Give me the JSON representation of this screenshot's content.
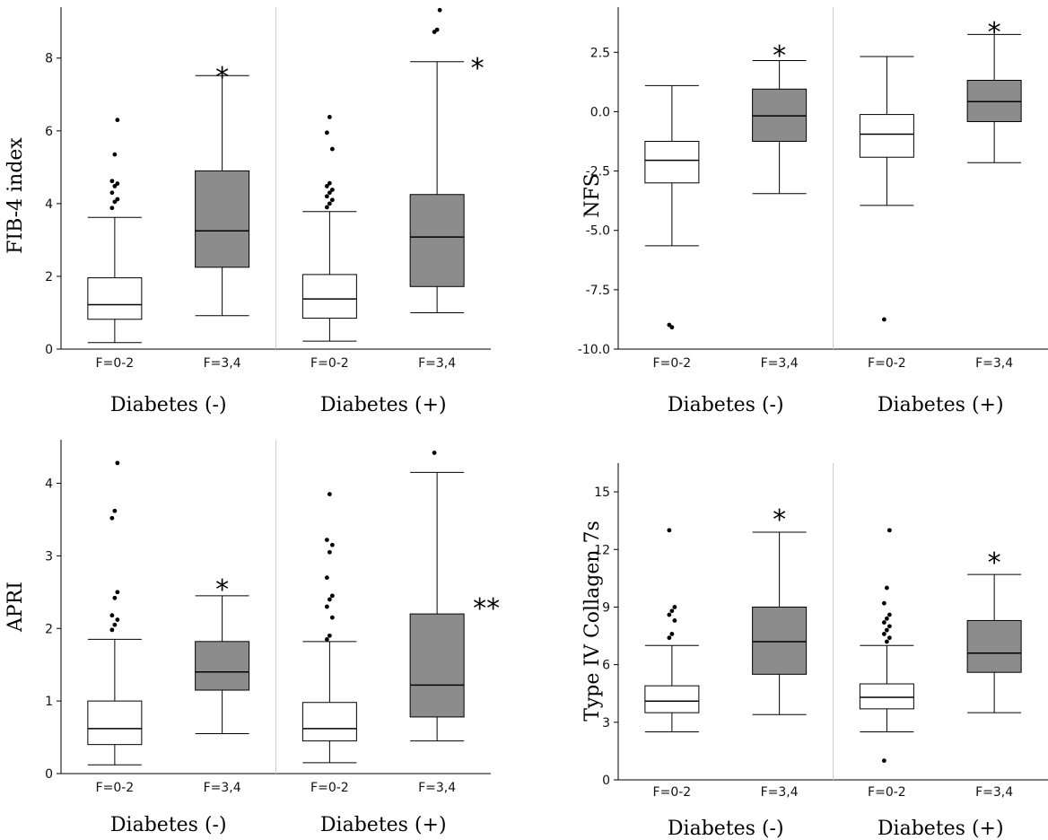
{
  "figure": {
    "background": "#ffffff",
    "box_fill_low": "#ffffff",
    "box_fill_high": "#8c8c8c",
    "stroke": "#000000",
    "divider": "#cccccc"
  },
  "chart_data": [
    {
      "type": "box",
      "ylabel": "FIB-4 index",
      "ylim": [
        0,
        9.4
      ],
      "yticks": [
        "0",
        "2",
        "4",
        "6",
        "8"
      ],
      "ytick_values": [
        0,
        2,
        4,
        6,
        8
      ],
      "groups": [
        "Diabetes (-)",
        "Diabetes (+)"
      ],
      "categories": [
        "F=0-2",
        "F=3,4",
        "F=0-2",
        "F=3,4"
      ],
      "boxes": [
        {
          "category": "F=0-2",
          "group": "Diabetes (-)",
          "fill": "white",
          "min": 0.18,
          "q1": 0.82,
          "median": 1.22,
          "q3": 1.96,
          "max": 3.62,
          "outliers": [
            3.88,
            4.05,
            4.12,
            4.3,
            4.48,
            4.55,
            4.62,
            5.35,
            6.3
          ],
          "star": ""
        },
        {
          "category": "F=3,4",
          "group": "Diabetes (-)",
          "fill": "gray",
          "min": 0.92,
          "q1": 2.25,
          "median": 3.25,
          "q3": 4.9,
          "max": 7.52,
          "outliers": [],
          "star": "*"
        },
        {
          "category": "F=0-2",
          "group": "Diabetes (+)",
          "fill": "white",
          "min": 0.22,
          "q1": 0.85,
          "median": 1.38,
          "q3": 2.05,
          "max": 3.78,
          "outliers": [
            3.9,
            4.0,
            4.1,
            4.2,
            4.3,
            4.38,
            4.48,
            4.56,
            5.5,
            5.95,
            6.38
          ],
          "star": ""
        },
        {
          "category": "F=3,4",
          "group": "Diabetes (+)",
          "fill": "gray",
          "min": 1.0,
          "q1": 1.72,
          "median": 3.08,
          "q3": 4.25,
          "max": 7.9,
          "outliers": [
            8.72,
            8.78,
            9.32
          ],
          "star": "*"
        }
      ]
    },
    {
      "type": "box",
      "ylabel": "NFS",
      "ylim": [
        -10.0,
        4.4
      ],
      "yticks": [
        "-10.0",
        "-7.5",
        "-5.0",
        "-2.5",
        "0.0",
        "2.5"
      ],
      "ytick_values": [
        -10.0,
        -7.5,
        -5.0,
        -2.5,
        0.0,
        2.5
      ],
      "groups": [
        "Diabetes (-)",
        "Diabetes (+)"
      ],
      "categories": [
        "F=0-2",
        "F=3,4",
        "F=0-2",
        "F=3,4"
      ],
      "boxes": [
        {
          "category": "F=0-2",
          "group": "Diabetes (-)",
          "fill": "white",
          "min": -5.65,
          "q1": -3.0,
          "median": -2.05,
          "q3": -1.25,
          "max": 1.1,
          "outliers": [
            -8.98,
            -9.08
          ],
          "star": ""
        },
        {
          "category": "F=3,4",
          "group": "Diabetes (-)",
          "fill": "gray",
          "min": -3.45,
          "q1": -1.25,
          "median": -0.18,
          "q3": 0.95,
          "max": 2.15,
          "outliers": [],
          "star": "*"
        },
        {
          "category": "F=0-2",
          "group": "Diabetes (+)",
          "fill": "white",
          "min": -3.95,
          "q1": -1.92,
          "median": -0.95,
          "q3": -0.12,
          "max": 2.32,
          "outliers": [
            -8.75
          ],
          "star": ""
        },
        {
          "category": "F=3,4",
          "group": "Diabetes (+)",
          "fill": "gray",
          "min": -2.15,
          "q1": -0.42,
          "median": 0.42,
          "q3": 1.32,
          "max": 3.25,
          "outliers": [],
          "star": "*"
        }
      ]
    },
    {
      "type": "box",
      "ylabel": "APRI",
      "ylim": [
        0,
        4.6
      ],
      "yticks": [
        "0",
        "1",
        "2",
        "3",
        "4"
      ],
      "ytick_values": [
        0,
        1,
        2,
        3,
        4
      ],
      "groups": [
        "Diabetes (-)",
        "Diabetes (+)"
      ],
      "categories": [
        "F=0-2",
        "F=3,4",
        "F=0-2",
        "F=3,4"
      ],
      "boxes": [
        {
          "category": "F=0-2",
          "group": "Diabetes (-)",
          "fill": "white",
          "min": 0.12,
          "q1": 0.4,
          "median": 0.62,
          "q3": 1.0,
          "max": 1.85,
          "outliers": [
            1.98,
            2.05,
            2.12,
            2.18,
            2.42,
            2.5,
            3.52,
            3.62,
            4.28
          ],
          "star": ""
        },
        {
          "category": "F=3,4",
          "group": "Diabetes (-)",
          "fill": "gray",
          "min": 0.55,
          "q1": 1.15,
          "median": 1.4,
          "q3": 1.82,
          "max": 2.45,
          "outliers": [],
          "star": "*"
        },
        {
          "category": "F=0-2",
          "group": "Diabetes (+)",
          "fill": "white",
          "min": 0.15,
          "q1": 0.45,
          "median": 0.62,
          "q3": 0.98,
          "max": 1.82,
          "outliers": [
            1.85,
            1.9,
            2.15,
            2.3,
            2.4,
            2.45,
            2.7,
            3.05,
            3.15,
            3.22,
            3.85
          ],
          "star": ""
        },
        {
          "category": "F=3,4",
          "group": "Diabetes (+)",
          "fill": "gray",
          "min": 0.45,
          "q1": 0.78,
          "median": 1.22,
          "q3": 2.2,
          "max": 4.15,
          "outliers": [
            4.42
          ],
          "star": "**"
        }
      ]
    },
    {
      "type": "box",
      "ylabel": "Type IV Collagen 7s",
      "ylim": [
        0,
        16.5
      ],
      "yticks": [
        "0",
        "3",
        "6",
        "9",
        "12",
        "15"
      ],
      "ytick_values": [
        0,
        3,
        6,
        9,
        12,
        15
      ],
      "groups": [
        "Diabetes (-)",
        "Diabetes (+)"
      ],
      "categories": [
        "F=0-2",
        "F=3,4",
        "F=0-2",
        "F=3,4"
      ],
      "boxes": [
        {
          "category": "F=0-2",
          "group": "Diabetes (-)",
          "fill": "white",
          "min": 2.5,
          "q1": 3.5,
          "median": 4.1,
          "q3": 4.9,
          "max": 7.0,
          "outliers": [
            7.4,
            7.6,
            8.3,
            8.6,
            8.8,
            9.0,
            13.0
          ],
          "star": ""
        },
        {
          "category": "F=3,4",
          "group": "Diabetes (-)",
          "fill": "gray",
          "min": 3.4,
          "q1": 5.5,
          "median": 7.2,
          "q3": 9.0,
          "max": 12.9,
          "outliers": [],
          "star": "*"
        },
        {
          "category": "F=0-2",
          "group": "Diabetes (+)",
          "fill": "white",
          "min": 2.5,
          "q1": 3.7,
          "median": 4.3,
          "q3": 5.0,
          "max": 7.0,
          "outliers": [
            1.0,
            7.2,
            7.4,
            7.6,
            7.8,
            8.0,
            8.2,
            8.4,
            8.6,
            9.2,
            10.0,
            13.0
          ],
          "star": ""
        },
        {
          "category": "F=3,4",
          "group": "Diabetes (+)",
          "fill": "gray",
          "min": 3.5,
          "q1": 5.6,
          "median": 6.6,
          "q3": 8.3,
          "max": 10.7,
          "outliers": [],
          "star": "*"
        }
      ]
    }
  ]
}
